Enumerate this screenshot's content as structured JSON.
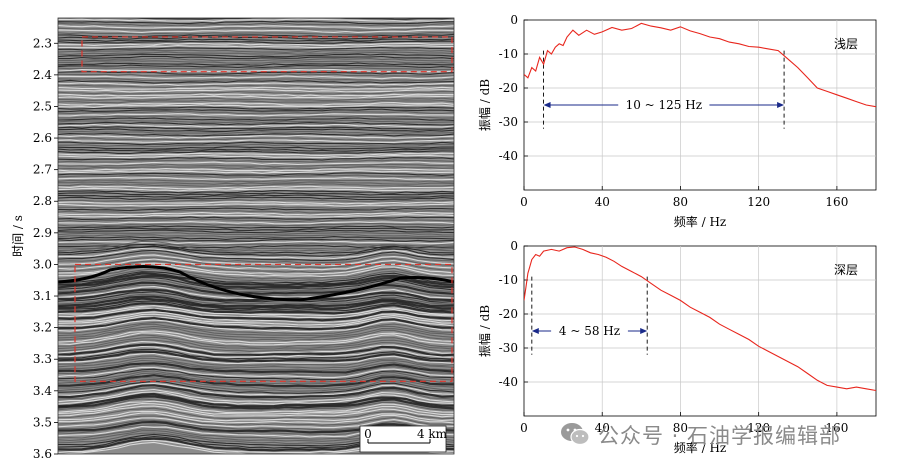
{
  "seismic": {
    "ylabel": "时间 / s",
    "yticks": [
      "2.3",
      "2.4",
      "2.5",
      "2.6",
      "2.7",
      "2.8",
      "2.9",
      "3.0",
      "3.1",
      "3.2",
      "3.3",
      "3.4",
      "3.5",
      "3.6"
    ],
    "ylim": [
      2.22,
      3.6
    ],
    "boxes": [
      {
        "t0": 2.28,
        "t1": 2.39
      },
      {
        "t0": 3.0,
        "t1": 3.37
      }
    ],
    "scalebar": {
      "start_label": "0",
      "end_label": "4 km"
    }
  },
  "chart_data": [
    {
      "type": "line",
      "label": "浅层",
      "xlabel": "频率 / Hz",
      "ylabel": "振幅 / dB",
      "xlim": [
        0,
        180
      ],
      "ylim": [
        -50,
        0
      ],
      "xticks": [
        0,
        40,
        80,
        120,
        160
      ],
      "yticks": [
        0,
        -10,
        -20,
        -30,
        -40
      ],
      "grid": true,
      "color": "#e8261d",
      "x": [
        0,
        2,
        4,
        6,
        8,
        10,
        12,
        14,
        16,
        18,
        20,
        22,
        25,
        28,
        32,
        36,
        40,
        45,
        50,
        55,
        60,
        65,
        70,
        75,
        80,
        85,
        90,
        95,
        100,
        105,
        110,
        115,
        120,
        125,
        130,
        133,
        136,
        140,
        145,
        150,
        155,
        160,
        165,
        170,
        175,
        180
      ],
      "y": [
        -16,
        -17,
        -14,
        -15,
        -11,
        -13,
        -9,
        -10,
        -8,
        -7,
        -7.5,
        -5,
        -3,
        -4.5,
        -3,
        -4.2,
        -3.5,
        -2.2,
        -3,
        -2.5,
        -1,
        -1.8,
        -2.3,
        -3,
        -2,
        -3.2,
        -4,
        -5,
        -5.5,
        -6.5,
        -7,
        -7.8,
        -8,
        -8.5,
        -9,
        -10.5,
        -12,
        -14,
        -17,
        -20,
        -21,
        -22,
        -23,
        -24,
        -25,
        -25.5
      ],
      "annotation": {
        "text": "10 ~ 125 Hz",
        "x_start": 10,
        "x_end": 133,
        "y": -25
      }
    },
    {
      "type": "line",
      "label": "深层",
      "xlabel": "频率 / Hz",
      "ylabel": "振幅 / dB",
      "xlim": [
        0,
        180
      ],
      "ylim": [
        -50,
        0
      ],
      "xticks": [
        0,
        40,
        80,
        120,
        160
      ],
      "yticks": [
        0,
        -10,
        -20,
        -30,
        -40
      ],
      "grid": true,
      "color": "#e8261d",
      "x": [
        0,
        1,
        2,
        3,
        4,
        6,
        8,
        10,
        14,
        18,
        22,
        26,
        30,
        34,
        38,
        42,
        46,
        50,
        55,
        60,
        65,
        70,
        75,
        80,
        85,
        90,
        95,
        100,
        105,
        110,
        115,
        120,
        125,
        130,
        135,
        140,
        145,
        150,
        155,
        160,
        165,
        170,
        175,
        180
      ],
      "y": [
        -16,
        -12,
        -8,
        -6,
        -4,
        -2.5,
        -3,
        -1.5,
        -1,
        -1.5,
        -0.5,
        -0.3,
        -1,
        -2,
        -2.5,
        -3.3,
        -4.5,
        -6,
        -7.5,
        -9,
        -11,
        -13,
        -14.5,
        -16,
        -18,
        -19.5,
        -21,
        -23,
        -24.5,
        -26,
        -27.5,
        -29.5,
        -31,
        -32.5,
        -34,
        -35.5,
        -37.5,
        -39.5,
        -41,
        -41.5,
        -42,
        -41.5,
        -42,
        -42.5
      ],
      "annotation": {
        "text": "4 ~ 58 Hz",
        "x_start": 4,
        "x_end": 63,
        "y": -25
      }
    }
  ],
  "watermark": {
    "text": "公众号 · 石油学报编辑部",
    "icon": "wechat-icon"
  }
}
